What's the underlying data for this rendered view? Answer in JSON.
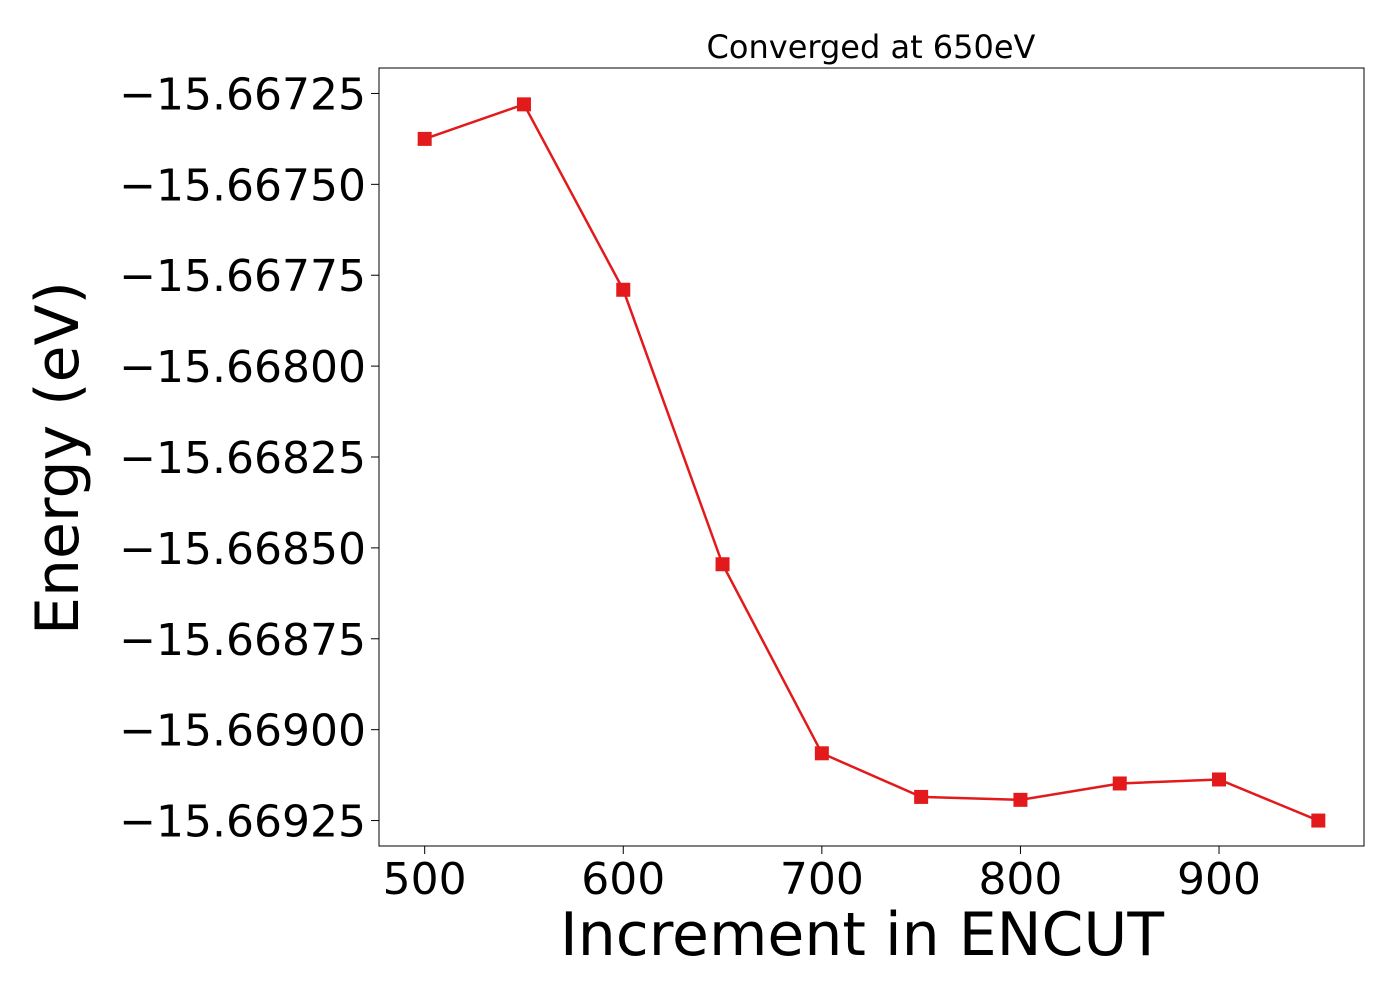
{
  "chart_data": {
    "type": "line",
    "title": "Converged at 650eV",
    "xlabel": "Increment in ENCUT",
    "ylabel": "Energy (eV)",
    "xlim": [
      477,
      973
    ],
    "ylim": [
      -15.66932,
      -15.66718
    ],
    "x_ticks": [
      500,
      600,
      700,
      800,
      900
    ],
    "x_tick_labels": [
      "500",
      "600",
      "700",
      "800",
      "900"
    ],
    "y_ticks": [
      -15.66725,
      -15.6675,
      -15.66775,
      -15.668,
      -15.66825,
      -15.6685,
      -15.66875,
      -15.669,
      -15.66925
    ],
    "y_tick_labels": [
      "−15.66725",
      "−15.66750",
      "−15.66775",
      "−15.66800",
      "−15.66825",
      "−15.66850",
      "−15.66875",
      "−15.66900",
      "−15.66925"
    ],
    "grid": false,
    "legend": "none",
    "series": [
      {
        "color": "#e31a1c",
        "marker": "square",
        "x": [
          500,
          550,
          600,
          650,
          700,
          750,
          800,
          850,
          900,
          950
        ],
        "y": [
          -15.667375,
          -15.66728,
          -15.66779,
          -15.668545,
          -15.669065,
          -15.669185,
          -15.669193,
          -15.669148,
          -15.669137,
          -15.66925
        ]
      }
    ]
  }
}
